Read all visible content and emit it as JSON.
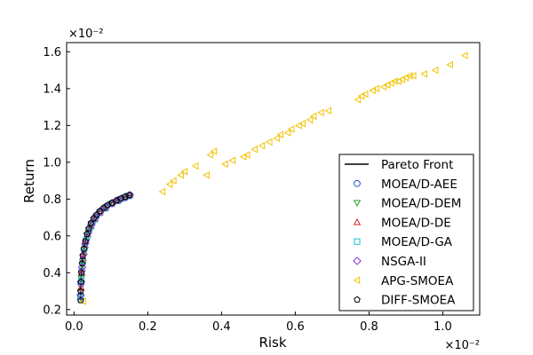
{
  "chart_data": {
    "type": "scatter",
    "xlabel": "Risk",
    "ylabel": "Return",
    "x_scale_label": "×10⁻²",
    "y_scale_label": "×10⁻²",
    "xlim": [
      -0.02,
      1.1
    ],
    "ylim": [
      0.17,
      1.65
    ],
    "x_ticks": [
      0.0,
      0.2,
      0.4,
      0.6,
      0.8,
      1.0
    ],
    "x_tick_labels": [
      "0.0",
      "0.2",
      "0.4",
      "0.6",
      "0.8",
      "1.0"
    ],
    "y_ticks": [
      0.2,
      0.4,
      0.6,
      0.8,
      1.0,
      1.2,
      1.4,
      1.6
    ],
    "y_tick_labels": [
      "0.2",
      "0.4",
      "0.6",
      "0.8",
      "1.0",
      "1.2",
      "1.4",
      "1.6"
    ],
    "grid": false,
    "legend_position": "lower-right",
    "pareto_front": {
      "name": "Pareto Front",
      "color": "#000000",
      "x": [
        0.018,
        0.018,
        0.019,
        0.02,
        0.022,
        0.025,
        0.028,
        0.032,
        0.037,
        0.043,
        0.05,
        0.058,
        0.067,
        0.077,
        0.088,
        0.1,
        0.112,
        0.124,
        0.136,
        0.148,
        0.152
      ],
      "y": [
        0.25,
        0.3,
        0.35,
        0.4,
        0.45,
        0.5,
        0.54,
        0.58,
        0.62,
        0.655,
        0.685,
        0.71,
        0.73,
        0.75,
        0.765,
        0.778,
        0.79,
        0.8,
        0.81,
        0.818,
        0.822
      ]
    },
    "series": [
      {
        "name": "MOEA/D-AEE",
        "marker": "circle",
        "color": "#1f4fd1",
        "x": [
          0.018,
          0.019,
          0.021,
          0.024,
          0.028,
          0.033,
          0.04,
          0.049,
          0.06,
          0.073,
          0.088,
          0.105,
          0.122,
          0.14,
          0.152
        ],
        "y": [
          0.27,
          0.34,
          0.41,
          0.47,
          0.53,
          0.58,
          0.63,
          0.67,
          0.705,
          0.735,
          0.76,
          0.78,
          0.797,
          0.812,
          0.822
        ]
      },
      {
        "name": "MOEA/D-DEM",
        "marker": "triangle-down",
        "color": "#2ca02c",
        "x": [
          0.018,
          0.02,
          0.023,
          0.027,
          0.032,
          0.039,
          0.048,
          0.059,
          0.072,
          0.087,
          0.104,
          0.121,
          0.139,
          0.15
        ],
        "y": [
          0.29,
          0.37,
          0.44,
          0.51,
          0.57,
          0.62,
          0.665,
          0.7,
          0.73,
          0.755,
          0.778,
          0.795,
          0.81,
          0.82
        ]
      },
      {
        "name": "MOEA/D-DE",
        "marker": "triangle-up",
        "color": "#d62728",
        "x": [
          0.019,
          0.021,
          0.025,
          0.03,
          0.037,
          0.046,
          0.057,
          0.07,
          0.085,
          0.102,
          0.119,
          0.137,
          0.151
        ],
        "y": [
          0.32,
          0.4,
          0.48,
          0.55,
          0.61,
          0.655,
          0.695,
          0.728,
          0.752,
          0.776,
          0.793,
          0.81,
          0.821
        ]
      },
      {
        "name": "MOEA/D-GA",
        "marker": "square",
        "color": "#17becf",
        "x": [
          0.018,
          0.02,
          0.024,
          0.029,
          0.036,
          0.045,
          0.056,
          0.069,
          0.084,
          0.101,
          0.118,
          0.136,
          0.15
        ],
        "y": [
          0.26,
          0.36,
          0.46,
          0.54,
          0.6,
          0.65,
          0.69,
          0.725,
          0.75,
          0.775,
          0.79,
          0.806,
          0.818
        ]
      },
      {
        "name": "NSGA-II",
        "marker": "diamond",
        "color": "#8a2be2",
        "x": [
          0.018,
          0.019,
          0.022,
          0.026,
          0.031,
          0.038,
          0.047,
          0.058,
          0.071,
          0.086,
          0.103,
          0.12,
          0.138,
          0.151
        ],
        "y": [
          0.28,
          0.35,
          0.43,
          0.5,
          0.56,
          0.615,
          0.66,
          0.7,
          0.73,
          0.757,
          0.777,
          0.795,
          0.81,
          0.821
        ]
      },
      {
        "name": "APG-SMOEA",
        "marker": "triangle-left",
        "color": "#f2c200",
        "x": [
          0.025,
          0.24,
          0.26,
          0.27,
          0.29,
          0.3,
          0.33,
          0.36,
          0.37,
          0.38,
          0.41,
          0.43,
          0.46,
          0.47,
          0.49,
          0.51,
          0.53,
          0.55,
          0.56,
          0.58,
          0.59,
          0.61,
          0.62,
          0.64,
          0.65,
          0.67,
          0.69,
          0.77,
          0.78,
          0.79,
          0.81,
          0.82,
          0.84,
          0.85,
          0.86,
          0.87,
          0.88,
          0.89,
          0.9,
          0.91,
          0.92,
          0.95,
          0.98,
          1.02,
          1.06
        ],
        "y": [
          0.245,
          0.84,
          0.88,
          0.9,
          0.93,
          0.95,
          0.98,
          0.93,
          1.04,
          1.06,
          0.99,
          1.01,
          1.03,
          1.04,
          1.07,
          1.09,
          1.11,
          1.13,
          1.15,
          1.16,
          1.18,
          1.2,
          1.21,
          1.23,
          1.25,
          1.27,
          1.28,
          1.34,
          1.36,
          1.37,
          1.39,
          1.4,
          1.41,
          1.42,
          1.43,
          1.44,
          1.44,
          1.45,
          1.46,
          1.47,
          1.47,
          1.48,
          1.5,
          1.53,
          1.58
        ]
      },
      {
        "name": "DIFF-SMOEA",
        "marker": "pentagon",
        "color": "#000000",
        "x": [
          0.018,
          0.018,
          0.019,
          0.02,
          0.022,
          0.024,
          0.027,
          0.031,
          0.035,
          0.04,
          0.046,
          0.053,
          0.061,
          0.07,
          0.08,
          0.091,
          0.103,
          0.115,
          0.127,
          0.139,
          0.149
        ],
        "y": [
          0.25,
          0.3,
          0.35,
          0.4,
          0.45,
          0.49,
          0.53,
          0.57,
          0.61,
          0.64,
          0.67,
          0.695,
          0.715,
          0.735,
          0.752,
          0.767,
          0.78,
          0.792,
          0.803,
          0.813,
          0.821
        ]
      }
    ]
  }
}
